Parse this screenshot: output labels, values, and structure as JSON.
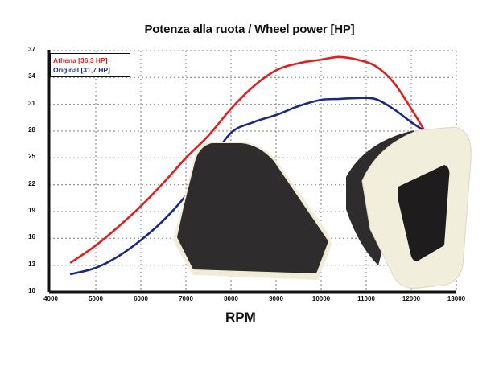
{
  "chart_data": {
    "type": "line",
    "title": "Potenza alla ruota / Wheel power [HP]",
    "xlabel": "RPM",
    "ylabel": "",
    "xlim": [
      4000,
      13000
    ],
    "ylim": [
      10,
      37
    ],
    "xticks": [
      4000,
      5000,
      6000,
      7000,
      8000,
      9000,
      10000,
      11000,
      12000,
      13000
    ],
    "yticks": [
      10,
      13,
      16,
      19,
      22,
      25,
      28,
      31,
      34,
      37
    ],
    "grid": true,
    "legend_position": "top-left",
    "x": [
      4450,
      5000,
      5500,
      6000,
      6500,
      7000,
      7500,
      8000,
      8500,
      9000,
      9500,
      10000,
      10400,
      10800,
      11200,
      11600,
      12000,
      12300
    ],
    "series": [
      {
        "name": "Athena [36,3 HP]",
        "color": "#e02020",
        "values": [
          13.3,
          15.2,
          17.3,
          19.6,
          22.2,
          25.0,
          27.5,
          30.5,
          33.0,
          34.8,
          35.6,
          36.0,
          36.3,
          36.0,
          35.3,
          33.5,
          30.5,
          28.0
        ]
      },
      {
        "name": "Original [31,7 HP]",
        "color": "#1a2a80",
        "values": [
          12.0,
          12.7,
          14.0,
          15.8,
          18.0,
          20.8,
          24.3,
          27.8,
          29.0,
          29.8,
          30.8,
          31.5,
          31.6,
          31.7,
          31.6,
          30.5,
          29.0,
          28.0
        ]
      }
    ],
    "annotations": [
      "Athena air filter product photos overlaid on chart"
    ]
  },
  "title": "Potenza alla ruota / Wheel power [HP]",
  "xlabel": "RPM",
  "legend": {
    "athena": "Athena [36,3 HP]",
    "original": "Original [31,7 HP]"
  },
  "yticks": [
    "37",
    "34",
    "31",
    "28",
    "25",
    "22",
    "19",
    "16",
    "13",
    "10"
  ],
  "xticks": [
    "4000",
    "5000",
    "6000",
    "7000",
    "8000",
    "9000",
    "10000",
    "11000",
    "12000",
    "13000"
  ]
}
